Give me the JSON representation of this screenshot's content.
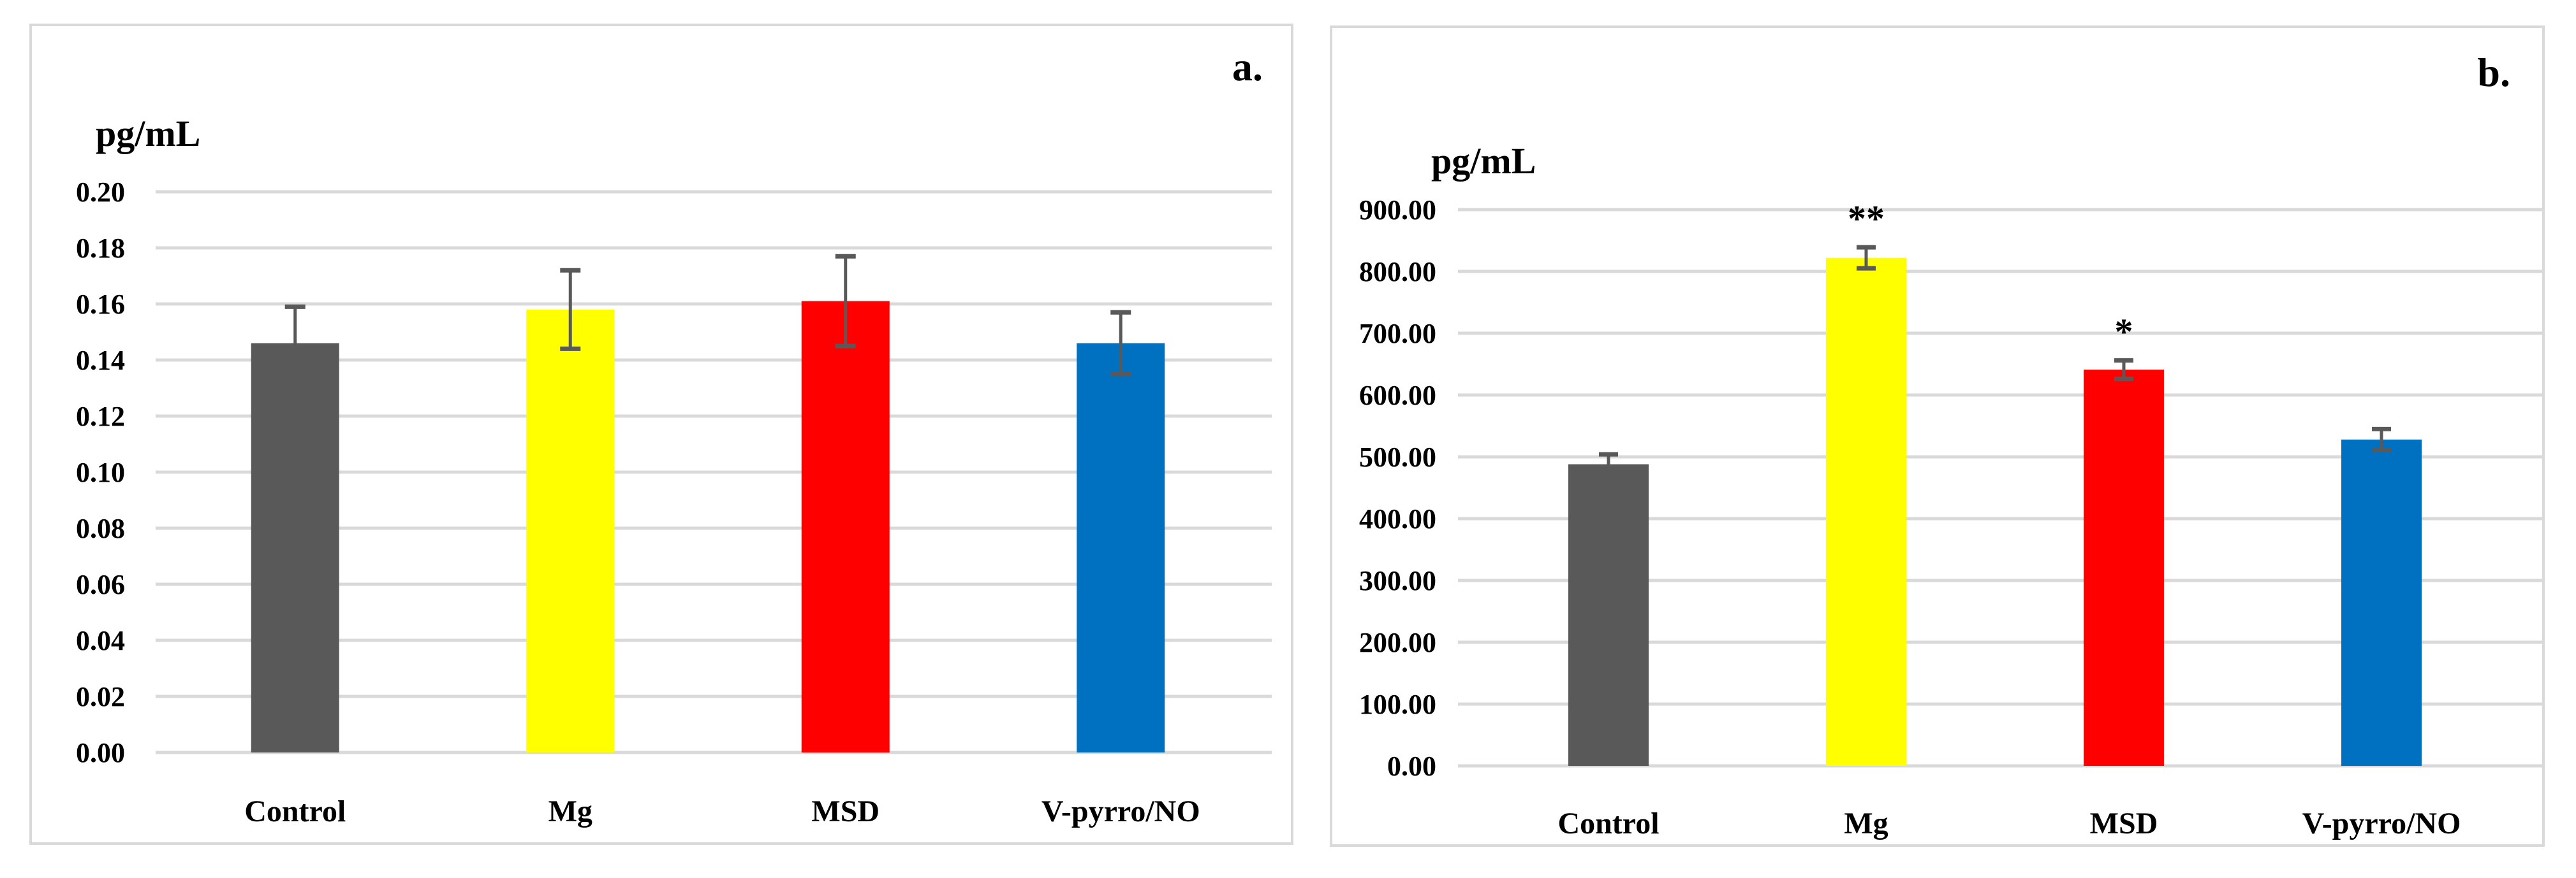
{
  "figure": {
    "background": "#ffffff",
    "panel_border_color": "#d9d9d9"
  },
  "chart_data": [
    {
      "type": "bar",
      "panel_label": "a.",
      "title": "",
      "ylabel": "pg/mL",
      "xlabel": "",
      "categories": [
        "Control",
        "Mg",
        "MSD",
        "V-pyrro/NO"
      ],
      "values": [
        0.146,
        0.158,
        0.161,
        0.146
      ],
      "error_bars": [
        0.013,
        0.014,
        0.016,
        0.011
      ],
      "significance": [
        "",
        "",
        "",
        ""
      ],
      "bar_colors": [
        "#595959",
        "#ffff00",
        "#ff0000",
        "#0070c0"
      ],
      "error_bar_color": "#595959",
      "gridline_color": "#d9d9d9",
      "ylim": [
        0,
        0.2
      ],
      "ytick_step": 0.02,
      "ytick_decimals": 2,
      "ytick_labels": [
        "0.00",
        "0.02",
        "0.04",
        "0.06",
        "0.08",
        "0.10",
        "0.12",
        "0.14",
        "0.16",
        "0.18",
        "0.20"
      ],
      "grid": true,
      "legend_position": "none"
    },
    {
      "type": "bar",
      "panel_label": "b.",
      "title": "",
      "ylabel": "pg/mL",
      "xlabel": "",
      "categories": [
        "Control",
        "Mg",
        "MSD",
        "V-pyrro/NO"
      ],
      "values": [
        488,
        822,
        641,
        528
      ],
      "error_bars": [
        16,
        17,
        15,
        17
      ],
      "significance": [
        "",
        "**",
        "*",
        ""
      ],
      "bar_colors": [
        "#595959",
        "#ffff00",
        "#ff0000",
        "#0070c0"
      ],
      "error_bar_color": "#595959",
      "gridline_color": "#d9d9d9",
      "ylim": [
        0,
        900
      ],
      "ytick_step": 100,
      "ytick_decimals": 2,
      "ytick_labels": [
        "0.00",
        "100.00",
        "200.00",
        "300.00",
        "400.00",
        "500.00",
        "600.00",
        "700.00",
        "800.00",
        "900.00"
      ],
      "grid": true,
      "legend_position": "none"
    }
  ]
}
